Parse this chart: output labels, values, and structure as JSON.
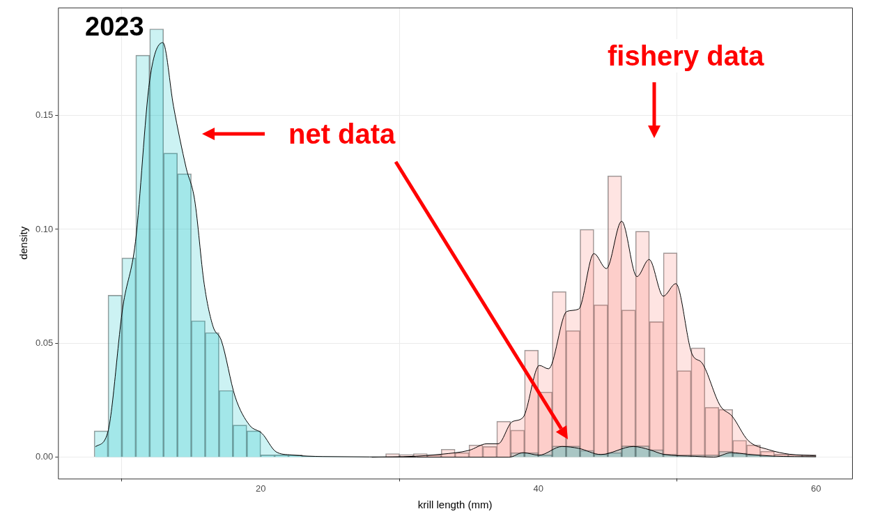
{
  "chart_data": {
    "type": "histogram",
    "xlabel": "krill length (mm)",
    "ylabel": "density",
    "annotations": [
      "2023",
      "fishery data",
      "net data"
    ],
    "bins": [
      8,
      9,
      10,
      11,
      12,
      13,
      14,
      15,
      16,
      17,
      18,
      19,
      20,
      21,
      22,
      23,
      24,
      25,
      26,
      27,
      28,
      29,
      30,
      31,
      32,
      33,
      34,
      35,
      36,
      37,
      38,
      39,
      40,
      41,
      42,
      43,
      44,
      45,
      46,
      47,
      48,
      49,
      50,
      51,
      52,
      53,
      54,
      55,
      56,
      57,
      58,
      59,
      60
    ],
    "series": [
      {
        "type": "histogram",
        "color": "#00bfc4",
        "values": [
          0.0116,
          0.0711,
          0.0875,
          0.1765,
          0.188,
          0.1335,
          0.1244,
          0.0599,
          0.0547,
          0.0293,
          0.0141,
          0.0116,
          0.001,
          0.001,
          0.001,
          0.0005,
          0,
          0,
          0,
          0,
          0,
          0,
          0,
          0,
          0,
          0,
          0,
          0,
          0,
          0,
          0.002,
          0.002,
          0.001,
          0.0049,
          0.0049,
          0.003,
          0.0013,
          0.002,
          0.005,
          0.005,
          0.0033,
          0.0013,
          0.001,
          0.001,
          0.001,
          0.0026,
          0.0018,
          0.001,
          0.0005,
          0,
          0,
          0
        ]
      },
      {
        "type": "histogram",
        "color": "#f8766d",
        "values": [
          0,
          0,
          0,
          0,
          0,
          0,
          0,
          0,
          0,
          0,
          0,
          0,
          0,
          0,
          0,
          0,
          0,
          0,
          0,
          0,
          0,
          0.0016,
          0.0012,
          0.0016,
          0.001,
          0.0035,
          0.002,
          0.0054,
          0.0047,
          0.0158,
          0.0119,
          0.047,
          0.0286,
          0.0727,
          0.0556,
          0.1,
          0.0669,
          0.1235,
          0.0646,
          0.0992,
          0.0595,
          0.0897,
          0.038,
          0.048,
          0.0219,
          0.021,
          0.0074,
          0.0054,
          0.0026,
          0.0013,
          0.0012,
          0.0012
        ]
      },
      {
        "type": "area",
        "color": "#00bfc4",
        "x": [
          8.09,
          8.96,
          10.07,
          10.98,
          12.0,
          12.95,
          13.72,
          14.63,
          15.24,
          15.93,
          16.56,
          17.16,
          18.16,
          19.19,
          20.1,
          21.1,
          22.2,
          24.5,
          37.9,
          38.9,
          40.05,
          41.7,
          42.9,
          44.5,
          46.85,
          48,
          49,
          51.3,
          52.65,
          53.9,
          55.1,
          56.9,
          60
        ],
        "values": [
          0.0046,
          0.0104,
          0.066,
          0.0947,
          0.1653,
          0.182,
          0.154,
          0.127,
          0.113,
          0.076,
          0.0575,
          0.0513,
          0.0265,
          0.0141,
          0.0104,
          0.0024,
          0.001,
          0.0003,
          0,
          0.002,
          0.0009,
          0.0047,
          0.0039,
          0.0012,
          0.0047,
          0.0033,
          0.0013,
          0.0004,
          0,
          0.002,
          0.0013,
          0.0005,
          0.0002
        ]
      },
      {
        "type": "area",
        "color": "#f8766d",
        "x": [
          28,
          31,
          33,
          35,
          36.3,
          37.1,
          38.1,
          38.9,
          40.07,
          40.73,
          42.05,
          42.9,
          44.0,
          44.9,
          46.0,
          47.1,
          47.98,
          49.0,
          49.9,
          51.07,
          51.8,
          53.1,
          53.96,
          55.1,
          56.6,
          58.1,
          60
        ],
        "values": [
          0,
          0.0004,
          0.0013,
          0.003,
          0.0059,
          0.0059,
          0.0155,
          0.0175,
          0.0403,
          0.0388,
          0.064,
          0.065,
          0.0894,
          0.0828,
          0.1036,
          0.0793,
          0.0868,
          0.0707,
          0.0762,
          0.0453,
          0.0413,
          0.0226,
          0.018,
          0.0074,
          0.0033,
          0.0013,
          0.0006
        ]
      }
    ],
    "xlim": [
      5.4,
      62.6
    ],
    "xticks": [
      20,
      40,
      60
    ],
    "ylim": [
      -0.0094,
      0.1974
    ],
    "yticks": [
      {
        "value": 0,
        "label": "0.00"
      },
      {
        "value": 0.05,
        "label": "0.05"
      },
      {
        "value": 0.1,
        "label": "0.10"
      },
      {
        "value": 0.15,
        "label": "0.15"
      }
    ],
    "grid": true,
    "legend": false
  }
}
